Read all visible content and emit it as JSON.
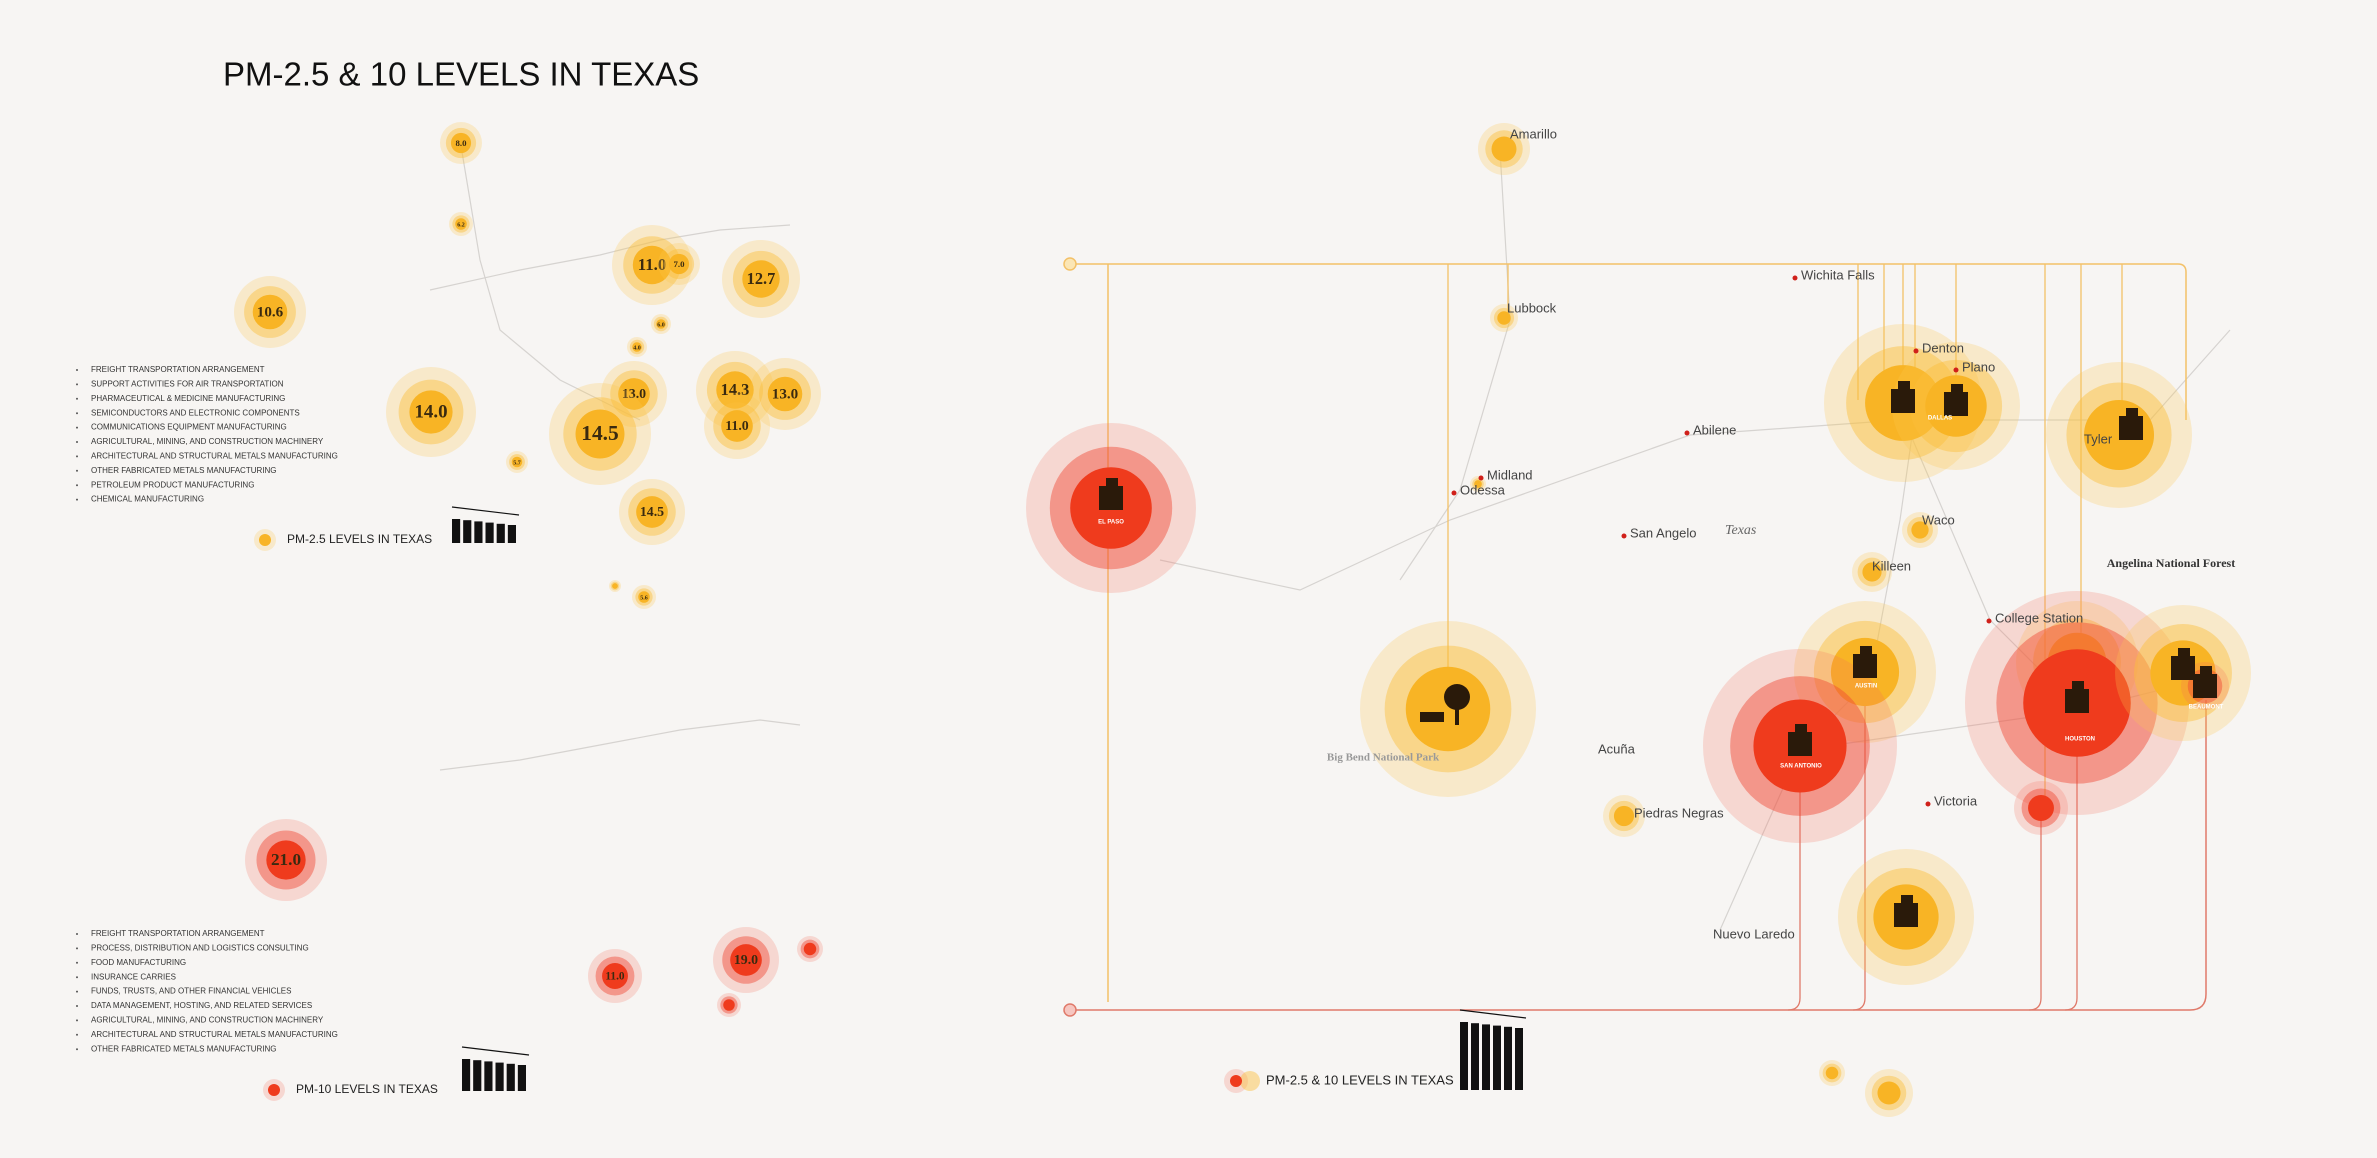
{
  "title": "PM-2.5 & 10 LEVELS IN TEXAS",
  "pm25": {
    "bubbles": [
      "8.0",
      "6.2",
      "10.6",
      "11.0",
      "7.0",
      "12.7",
      "6.0",
      "4.0",
      "14.0",
      "13.0",
      "14.3",
      "13.0",
      "14.5",
      "11.0",
      "5.7",
      "14.5",
      "5.6"
    ],
    "industries": [
      "FREIGHT TRANSPORTATION ARRANGEMENT",
      "SUPPORT ACTIVITIES FOR AIR TRANSPORTATION",
      "PHARMACEUTICAL & MEDICINE MANUFACTURING",
      "SEMICONDUCTORS AND ELECTRONIC COMPONENTS",
      "COMMUNICATIONS EQUIPMENT MANUFACTURING",
      "AGRICULTURAL, MINING, AND CONSTRUCTION MACHINERY",
      "ARCHITECTURAL AND STRUCTURAL METALS MANUFACTURING",
      "OTHER FABRICATED METALS MANUFACTURING",
      "PETROLEUM PRODUCT MANUFACTURING",
      "CHEMICAL MANUFACTURING"
    ],
    "legend": "PM-2.5 LEVELS IN TEXAS"
  },
  "pm10": {
    "bubbles": [
      "21.0",
      "11.0",
      "19.0"
    ],
    "industries": [
      "FREIGHT TRANSPORTATION ARRANGEMENT",
      "PROCESS, DISTRIBUTION AND LOGISTICS CONSULTING",
      "FOOD MANUFACTURING",
      "INSURANCE CARRIES",
      "FUNDS, TRUSTS, AND OTHER FINANCIAL VEHICLES",
      "DATA MANAGEMENT, HOSTING, AND RELATED SERVICES",
      "AGRICULTURAL, MINING, AND CONSTRUCTION MACHINERY",
      "ARCHITECTURAL AND STRUCTURAL METALS MANUFACTURING",
      "OTHER FABRICATED METALS MANUFACTURING"
    ],
    "legend": "PM-10 LEVELS IN TEXAS"
  },
  "overview": {
    "cities": [
      "Amarillo",
      "Lubbock",
      "Wichita Falls",
      "Denton",
      "Plano",
      "DALLAS",
      "Abilene",
      "Midland",
      "Odessa",
      "San Angelo",
      "Texas",
      "Waco",
      "Killeen",
      "Tyler",
      "Angelina National Forest",
      "College Station",
      "AUSTIN",
      "SAN ANTONIO",
      "HOUSTON",
      "BEAUMONT",
      "Big Bend National Park",
      "Acuña",
      "Piedras Negras",
      "Victoria",
      "Nuevo Laredo",
      "EL PASO"
    ],
    "legend": "PM-2.5 & 10 LEVELS IN TEXAS"
  }
}
